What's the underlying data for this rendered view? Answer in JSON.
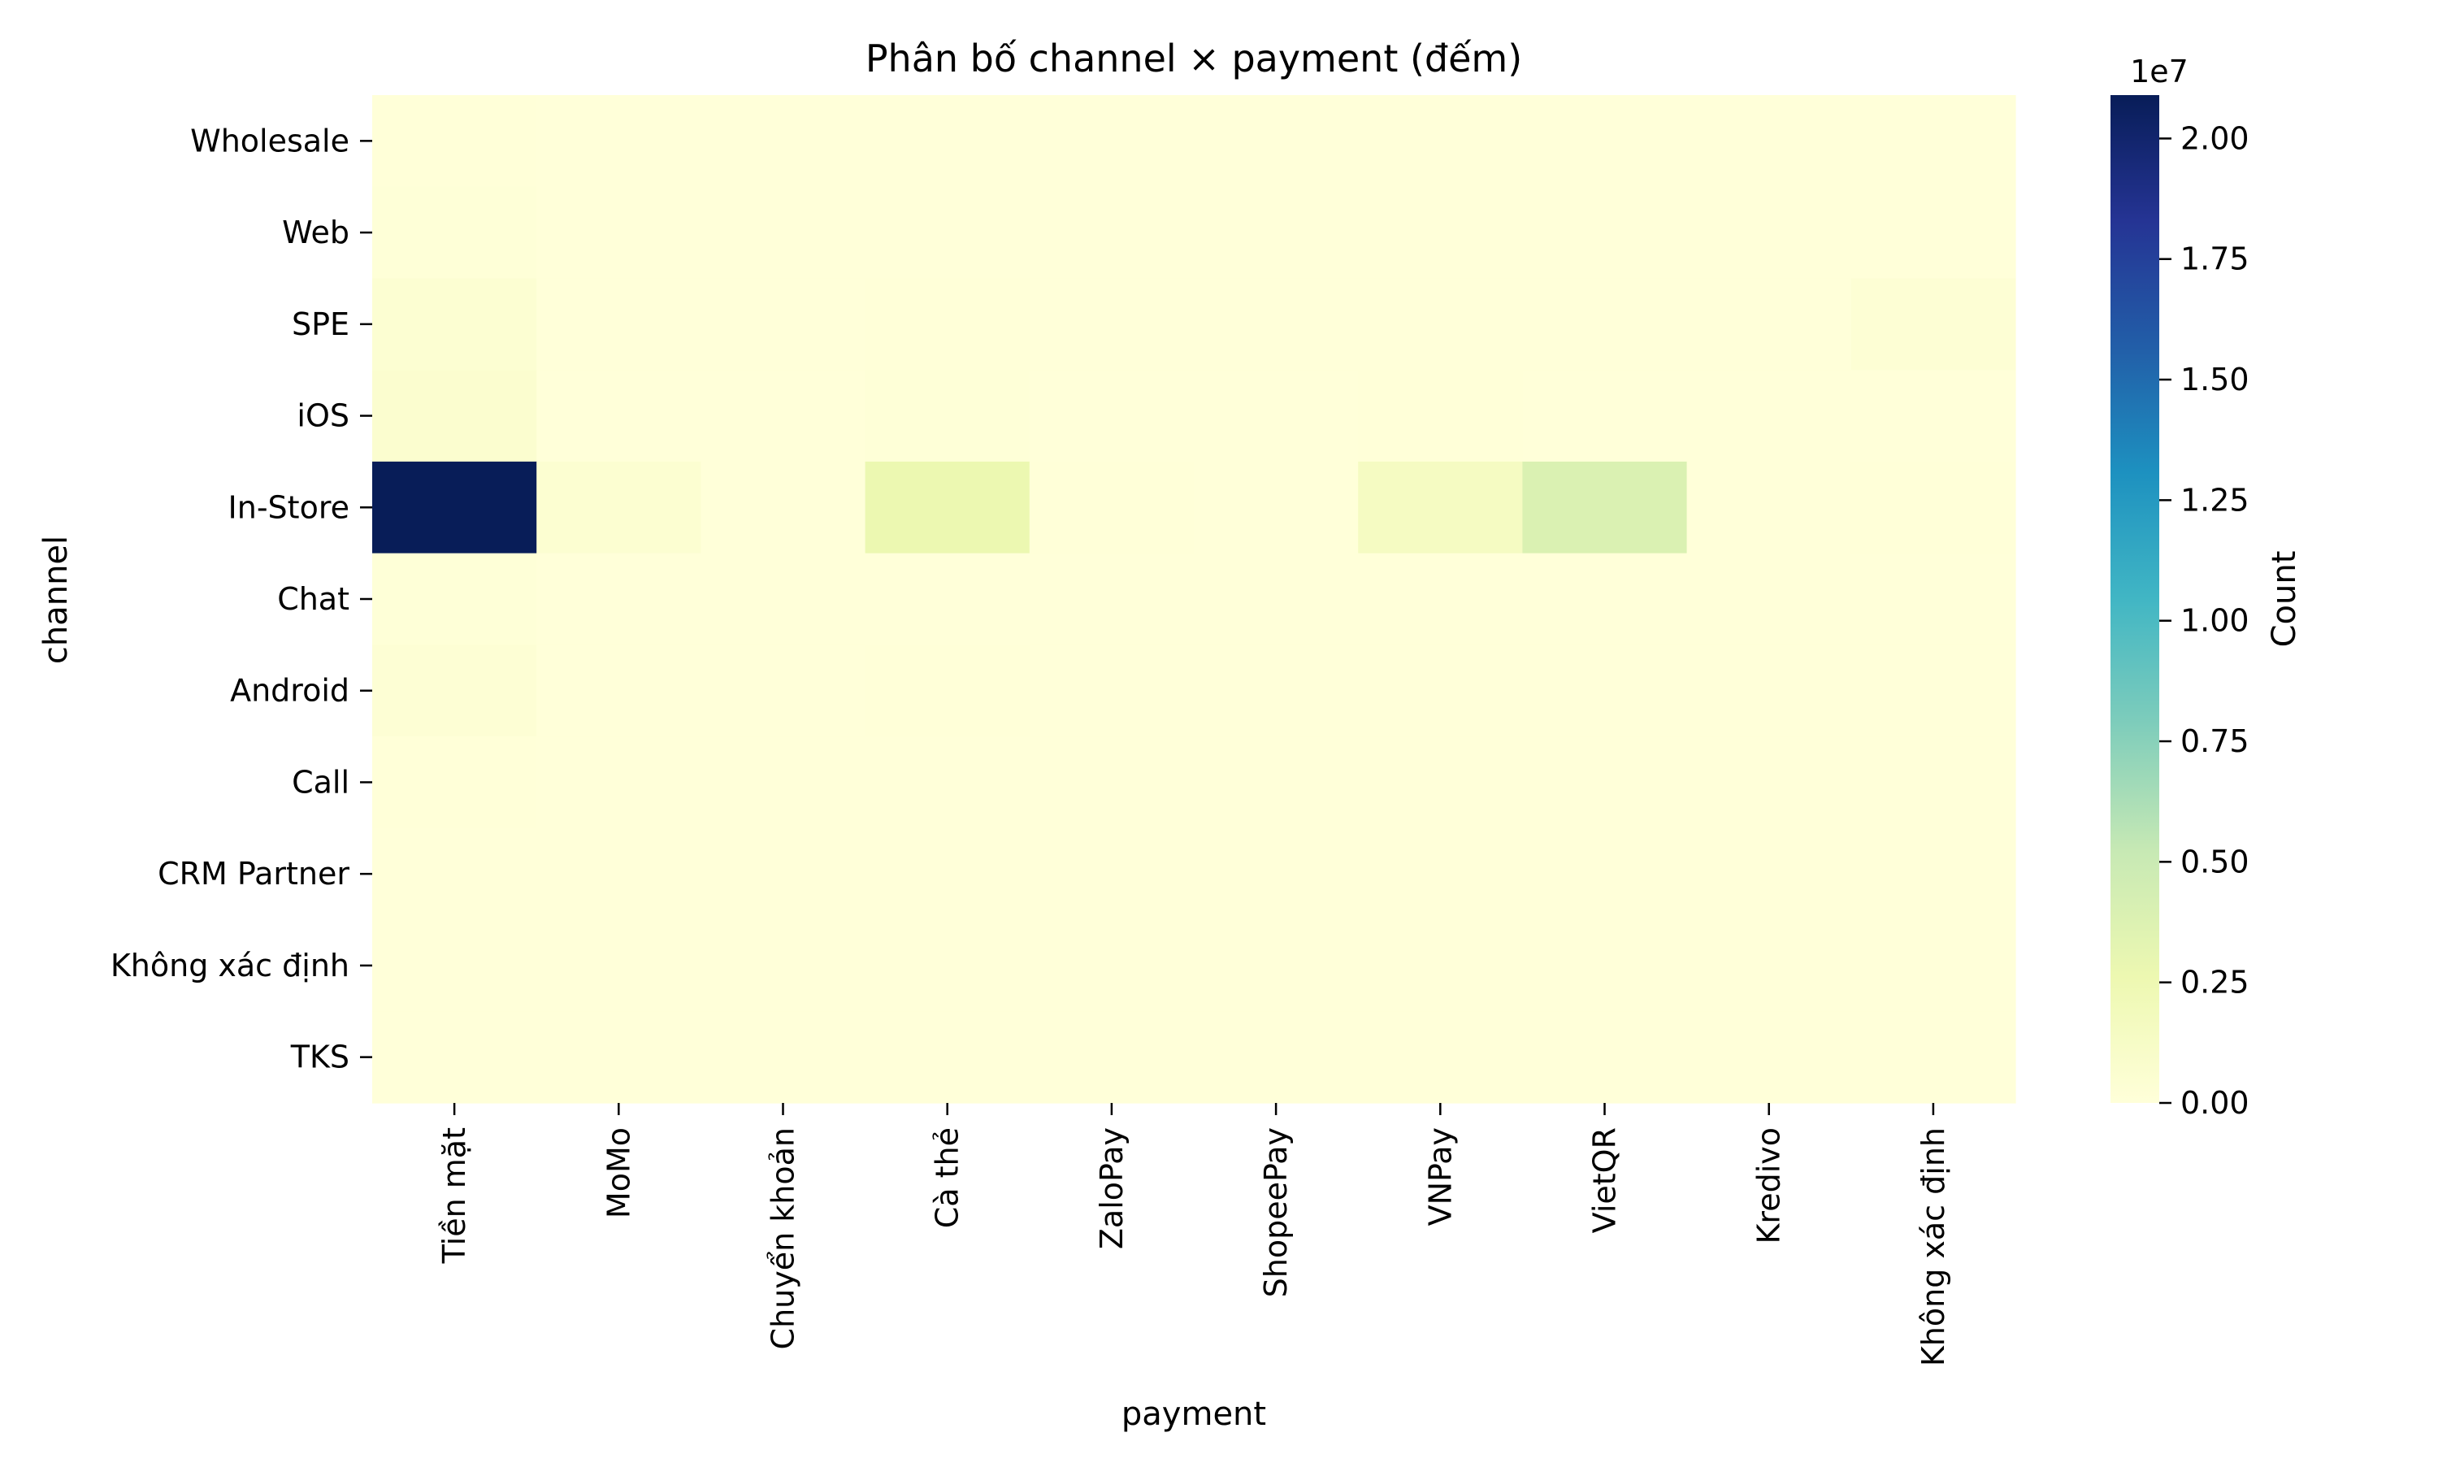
{
  "chart_data": {
    "type": "heatmap",
    "title": "Phân bố channel × payment (đếm)",
    "xlabel": "payment",
    "ylabel": "channel",
    "x_categories": [
      "Tiền mặt",
      "MoMo",
      "Chuyển khoản",
      "Cà thẻ",
      "ZaloPay",
      "ShopeePay",
      "VNPay",
      "VietQR",
      "Kredivo",
      "Không xác định"
    ],
    "y_categories": [
      "Wholesale",
      "Web",
      "SPE",
      "iOS",
      "In-Store",
      "Chat",
      "Android",
      "Call",
      "CRM Partner",
      "Không xác định",
      "TKS"
    ],
    "values": [
      [
        60000,
        5000,
        3000,
        10000,
        2000,
        2000,
        5000,
        5000,
        1000,
        20000
      ],
      [
        150000,
        10000,
        5000,
        30000,
        5000,
        5000,
        15000,
        10000,
        2000,
        30000
      ],
      [
        450000,
        20000,
        10000,
        60000,
        10000,
        10000,
        30000,
        20000,
        5000,
        350000
      ],
      [
        650000,
        30000,
        15000,
        100000,
        15000,
        15000,
        50000,
        30000,
        5000,
        30000
      ],
      [
        20900000,
        500000,
        20000,
        2650000,
        50000,
        30000,
        1500000,
        3900000,
        10000,
        40000
      ],
      [
        100000,
        5000,
        2000,
        15000,
        3000,
        3000,
        10000,
        5000,
        1000,
        10000
      ],
      [
        350000,
        15000,
        8000,
        40000,
        8000,
        8000,
        20000,
        15000,
        3000,
        30000
      ],
      [
        50000,
        3000,
        2000,
        8000,
        2000,
        2000,
        5000,
        3000,
        1000,
        5000
      ],
      [
        20000,
        2000,
        1000,
        5000,
        1000,
        1000,
        2000,
        2000,
        500,
        2000
      ],
      [
        20000,
        2000,
        1000,
        5000,
        1000,
        1000,
        2000,
        2000,
        500,
        5000
      ],
      [
        5000,
        500,
        500,
        1000,
        500,
        500,
        500,
        500,
        200,
        1000
      ]
    ],
    "colorbar": {
      "label": "Count",
      "min": 0,
      "max": 20900000,
      "ticks": [
        0,
        2500000,
        5000000,
        7500000,
        10000000,
        12500000,
        15000000,
        17500000,
        20000000
      ],
      "tick_labels": [
        "0.00",
        "0.25",
        "0.50",
        "0.75",
        "1.00",
        "1.25",
        "1.50",
        "1.75",
        "2.00"
      ],
      "exponent_label": "1e7",
      "colormap": "YlGnBu"
    }
  }
}
